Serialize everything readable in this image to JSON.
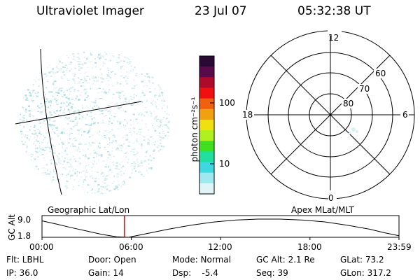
{
  "header": {
    "title": "Ultraviolet Imager",
    "date": "23 Jul 07",
    "time": "05:32:38 UT"
  },
  "colorbar": {
    "label": "photon cm⁻²s⁻¹",
    "ticks": [
      "100",
      "10"
    ],
    "scale": "log",
    "colors": [
      "#2a0a35",
      "#5a0a4a",
      "#b00a2a",
      "#f01010",
      "#f06010",
      "#f0a010",
      "#f0e010",
      "#b0f020",
      "#40e020",
      "#20e0a0",
      "#40d8e0",
      "#a0e8f0",
      "#e0f4f8"
    ]
  },
  "polar": {
    "labels": {
      "top": "12",
      "bottom": "0",
      "left": "18",
      "right": "6"
    },
    "lat_labels": [
      "60",
      "70",
      "80"
    ]
  },
  "timeline": {
    "ylabel": "GC Alt",
    "yticks": [
      "9.0",
      "1.8"
    ],
    "left_label": "Geographic Lat/Lon",
    "right_label": "Apex MLat/MLT",
    "xticks": [
      "00:00",
      "06:00",
      "12:00",
      "18:00",
      "23:59"
    ],
    "altitude_curve": [
      {
        "t": 0.0,
        "alt": 8.3
      },
      {
        "t": 1.0,
        "alt": 7.0
      },
      {
        "t": 2.0,
        "alt": 5.6
      },
      {
        "t": 3.0,
        "alt": 4.3
      },
      {
        "t": 4.0,
        "alt": 3.0
      },
      {
        "t": 5.0,
        "alt": 2.0
      },
      {
        "t": 5.8,
        "alt": 1.8
      },
      {
        "t": 7.0,
        "alt": 3.2
      },
      {
        "t": 8.5,
        "alt": 5.0
      },
      {
        "t": 10.0,
        "alt": 6.6
      },
      {
        "t": 11.5,
        "alt": 7.8
      },
      {
        "t": 13.0,
        "alt": 8.6
      },
      {
        "t": 14.5,
        "alt": 9.0
      },
      {
        "t": 16.0,
        "alt": 9.0
      },
      {
        "t": 17.5,
        "alt": 8.6
      },
      {
        "t": 19.0,
        "alt": 7.9
      },
      {
        "t": 20.5,
        "alt": 6.6
      },
      {
        "t": 22.0,
        "alt": 5.0
      },
      {
        "t": 23.0,
        "alt": 3.6
      },
      {
        "t": 23.98,
        "alt": 2.4
      }
    ],
    "marker_time": 5.54,
    "marker_color": "#d01010"
  },
  "info": {
    "flt": "Flt: LBHL",
    "ip": "IP: 36.0",
    "door": "Door: Open",
    "gain": "Gain: 14",
    "mode": "Mode: Normal",
    "dsp": "Dsp:    -5.4",
    "gcalt": "GC Alt: 2.1 Re",
    "seq": "Seq: 39",
    "glat": "GLat: 73.2",
    "glon": "GLon: 317.2"
  }
}
